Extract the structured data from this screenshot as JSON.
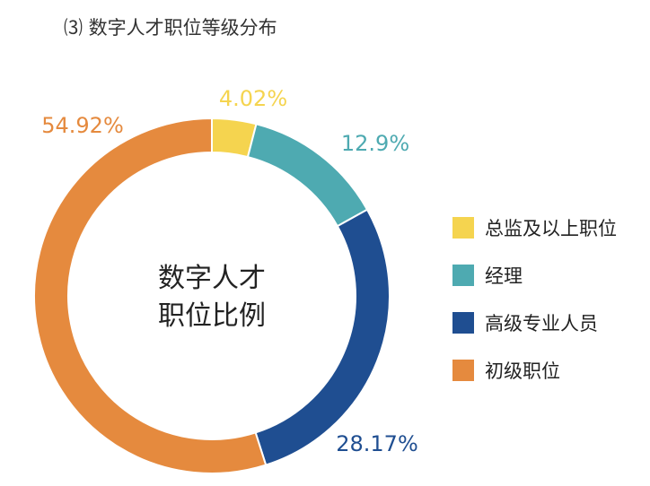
{
  "title": "⑶ 数字人才职位等级分布",
  "chart_data": {
    "type": "pie",
    "title": "⑶ 数字人才职位等级分布",
    "center_label": [
      "数字人才",
      "职位比例"
    ],
    "series": [
      {
        "name": "总监及以上职位",
        "value": 4.02,
        "label": "4.02%",
        "color": "#f5d44f"
      },
      {
        "name": "经理",
        "value": 12.9,
        "label": "12.9%",
        "color": "#4eaab1"
      },
      {
        "name": "高级专业人员",
        "value": 28.17,
        "label": "28.17%",
        "color": "#1f4e91"
      },
      {
        "name": "初级职位",
        "value": 54.92,
        "label": "54.92%",
        "color": "#e58a3e"
      }
    ],
    "legend_position": "right"
  }
}
